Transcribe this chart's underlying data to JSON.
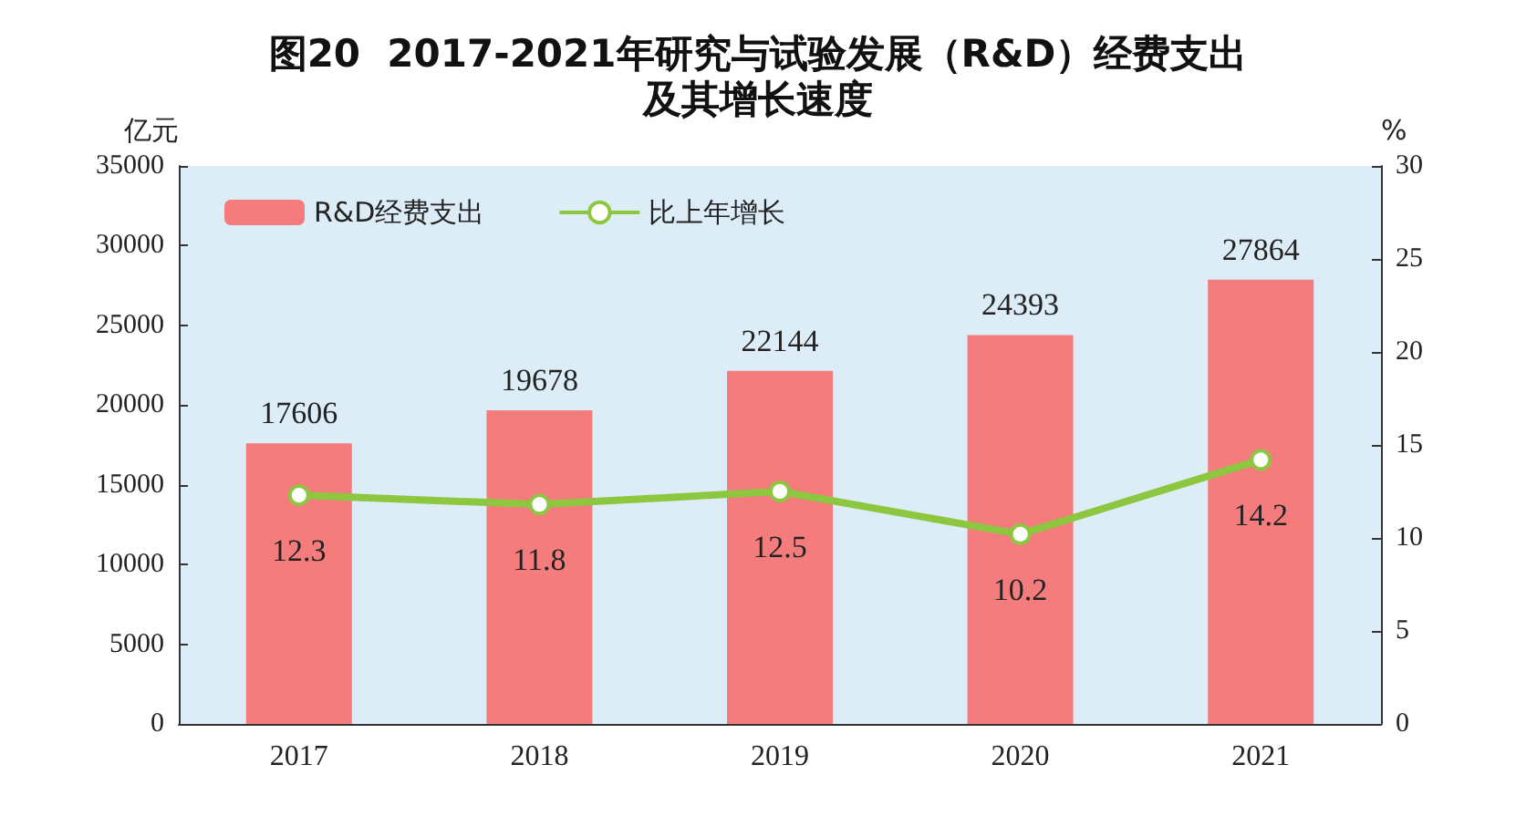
{
  "chart_data": {
    "type": "bar",
    "title": "图20  2017-2021年研究与试验发展（R&D）经费支出",
    "subtitle": "及其增长速度",
    "ylabel": "亿元",
    "y2label": "%",
    "categories": [
      "2017",
      "2018",
      "2019",
      "2020",
      "2021"
    ],
    "series": [
      {
        "name": "R&D经费支出",
        "color": "#f47c7c",
        "values": [
          17606,
          19678,
          22144,
          24393,
          27864
        ]
      },
      {
        "name": "比上年增长",
        "type": "line",
        "axis": "y2",
        "color": "#8dc63f",
        "marker": "circle",
        "values": [
          12.3,
          11.8,
          12.5,
          10.2,
          14.2
        ]
      }
    ],
    "ylim": [
      0,
      35000
    ],
    "yticks": [
      0,
      5000,
      10000,
      15000,
      20000,
      25000,
      30000,
      35000
    ],
    "y2lim": [
      0,
      30
    ],
    "y2ticks": [
      0,
      5,
      10,
      15,
      20,
      25,
      30
    ],
    "data_labels": true,
    "legend": "top left",
    "grid": false
  }
}
